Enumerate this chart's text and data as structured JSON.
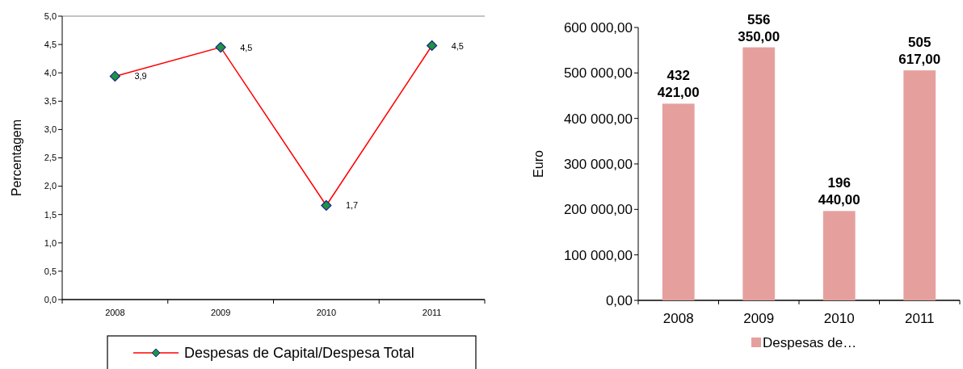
{
  "chart_data": [
    {
      "type": "line",
      "ylabel": "Percentagem",
      "categories": [
        "2008",
        "2009",
        "2010",
        "2011"
      ],
      "series": [
        {
          "name": "Despesas de Capital/Despesa Total",
          "color": "#ff0000",
          "values": [
            3.94,
            4.45,
            1.66,
            4.48
          ],
          "value_labels": [
            "3,9",
            "4,5",
            "1,7",
            "4,5"
          ]
        }
      ],
      "ylim": [
        0,
        5
      ],
      "yticks": [
        {
          "value": 0,
          "label": "0,0"
        },
        {
          "value": 0.5,
          "label": "0,5"
        },
        {
          "value": 1,
          "label": "1,0"
        },
        {
          "value": 1.5,
          "label": "1,5"
        },
        {
          "value": 2,
          "label": "2,0"
        },
        {
          "value": 2.5,
          "label": "2,5"
        },
        {
          "value": 3,
          "label": "3,0"
        },
        {
          "value": 3.5,
          "label": "3,5"
        },
        {
          "value": 4,
          "label": "4,0"
        },
        {
          "value": 4.5,
          "label": "4,5"
        },
        {
          "value": 5,
          "label": "5,0"
        }
      ],
      "marker": "diamond",
      "legend": "bottom",
      "grid": false
    },
    {
      "type": "bar",
      "ylabel": "Euro",
      "categories": [
        "2008",
        "2009",
        "2010",
        "2011"
      ],
      "series": [
        {
          "name": "Despesas de…",
          "color": "#e5a09e",
          "values": [
            432421,
            556350,
            196440,
            505617
          ],
          "value_labels": [
            "432 421,00",
            "556 350,00",
            "196 440,00",
            "505 617,00"
          ]
        }
      ],
      "ylim": [
        0,
        600000
      ],
      "yticks": [
        {
          "value": 0,
          "label": "0,00"
        },
        {
          "value": 100000,
          "label": "100 000,00"
        },
        {
          "value": 200000,
          "label": "200 000,00"
        },
        {
          "value": 300000,
          "label": "300 000,00"
        },
        {
          "value": 400000,
          "label": "400 000,00"
        },
        {
          "value": 500000,
          "label": "500 000,00"
        },
        {
          "value": 600000,
          "label": "600 000,00"
        }
      ],
      "legend": "bottom",
      "grid": false
    }
  ]
}
